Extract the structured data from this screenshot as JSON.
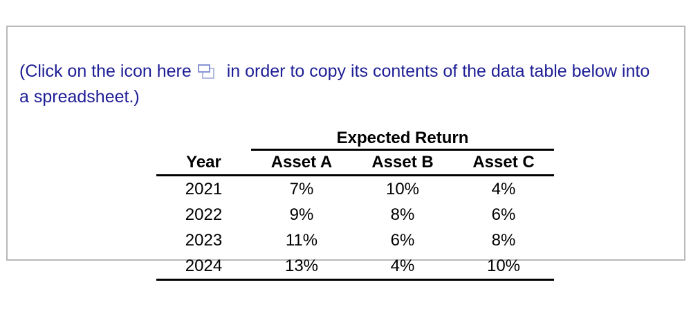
{
  "panel": {
    "instruction": {
      "before_icon": "(Click on the icon here",
      "after_icon": "in order to copy its contents of the data table below into",
      "line2": "a spreadsheet.)"
    },
    "icon": "copy-icon",
    "colors": {
      "instruction_text": "#1e1e96",
      "icon_front_border": "#8694d2",
      "icon_back_border": "#b2bce2",
      "panel_border": "#b9b9b9",
      "table_text": "#000000"
    }
  },
  "table": {
    "group_header": "Expected Return",
    "columns": [
      "Year",
      "Asset A",
      "Asset B",
      "Asset C"
    ],
    "rows": [
      [
        "2021",
        "7%",
        "10%",
        "4%"
      ],
      [
        "2022",
        "9%",
        "8%",
        "6%"
      ],
      [
        "2023",
        "11%",
        "6%",
        "8%"
      ],
      [
        "2024",
        "13%",
        "4%",
        "10%"
      ]
    ]
  }
}
